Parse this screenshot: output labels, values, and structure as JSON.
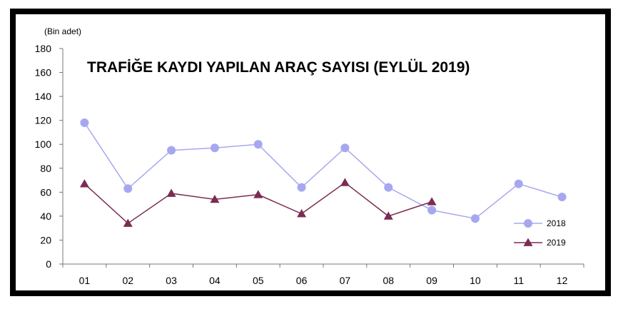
{
  "chart_data": {
    "type": "line",
    "title": "TRAFİĞE KAYDI YAPILAN ARAÇ SAYISI (EYLÜL 2019)",
    "unit_label": "(Bin adet)",
    "categories": [
      "01",
      "02",
      "03",
      "04",
      "05",
      "06",
      "07",
      "08",
      "09",
      "10",
      "11",
      "12"
    ],
    "ylim": [
      0,
      180
    ],
    "yticks": [
      0,
      20,
      40,
      60,
      80,
      100,
      120,
      140,
      160,
      180
    ],
    "grid": false,
    "legend_position": "bottom-right",
    "series": [
      {
        "name": "2018",
        "color": "#a7a7f0",
        "marker": "circle",
        "values": [
          118,
          63,
          95,
          97,
          100,
          64,
          97,
          64,
          45,
          38,
          67,
          56
        ]
      },
      {
        "name": "2019",
        "color": "#7b2c52",
        "marker": "triangle",
        "values": [
          67,
          34,
          59,
          54,
          58,
          42,
          68,
          40,
          52,
          null,
          null,
          null
        ]
      }
    ]
  }
}
